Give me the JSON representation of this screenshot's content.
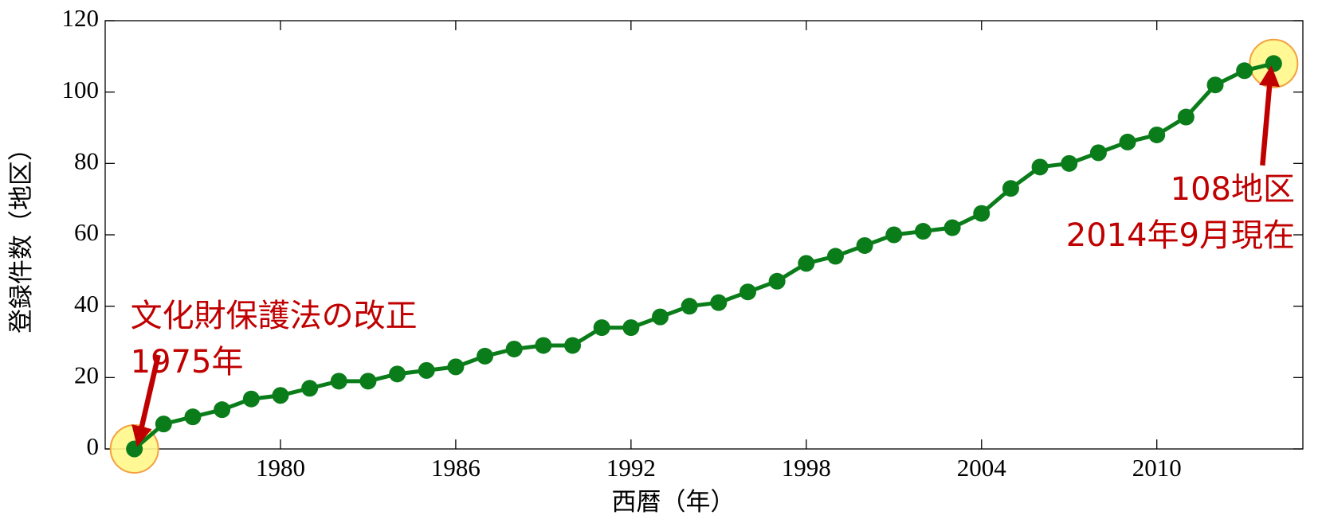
{
  "chart_data": {
    "type": "line",
    "x_label": "西暦（年）",
    "y_label": "登録件数（地区）",
    "x": [
      1975,
      1976,
      1977,
      1978,
      1979,
      1980,
      1981,
      1982,
      1983,
      1984,
      1985,
      1986,
      1987,
      1988,
      1989,
      1990,
      1991,
      1992,
      1993,
      1994,
      1995,
      1996,
      1997,
      1998,
      1999,
      2000,
      2001,
      2002,
      2003,
      2004,
      2005,
      2006,
      2007,
      2008,
      2009,
      2010,
      2011,
      2012,
      2013,
      2014
    ],
    "series": [
      {
        "name": "登録件数",
        "color": "#0a7d1a",
        "values": [
          0,
          7,
          9,
          11,
          14,
          15,
          17,
          19,
          19,
          21,
          22,
          23,
          26,
          28,
          29,
          29,
          34,
          34,
          37,
          40,
          41,
          44,
          47,
          52,
          54,
          57,
          60,
          61,
          62,
          66,
          73,
          79,
          80,
          83,
          86,
          88,
          93,
          102,
          106,
          108
        ]
      }
    ],
    "xlim": [
      1974,
      2015
    ],
    "xticks": [
      1980,
      1986,
      1992,
      1998,
      2004,
      2010
    ],
    "ylim": [
      0,
      120
    ],
    "yticks": [
      0,
      20,
      40,
      60,
      80,
      100,
      120
    ],
    "grid": false,
    "annotations": [
      {
        "lines": [
          "文化財保護法の改正",
          "1975年"
        ],
        "x": 1975,
        "y": 0,
        "color": "#c00000"
      },
      {
        "lines": [
          "108地区",
          "2014年9月現在"
        ],
        "x": 2014,
        "y": 108,
        "color": "#c00000"
      }
    ]
  }
}
